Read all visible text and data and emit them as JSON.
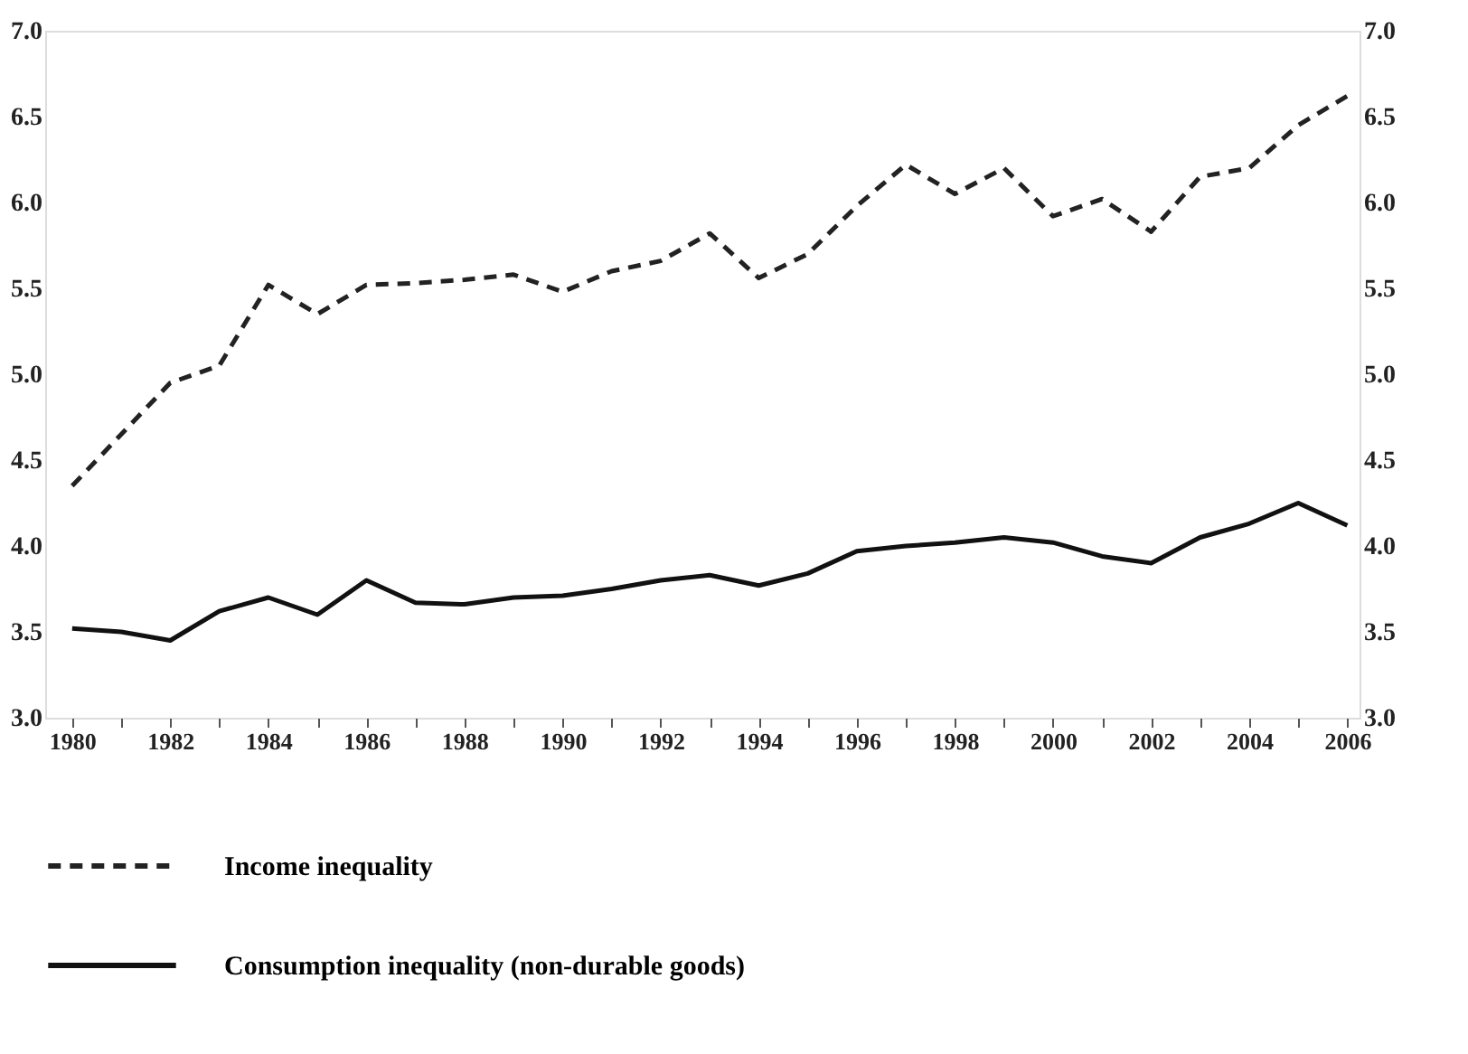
{
  "chart_data": {
    "type": "line",
    "x": [
      1980,
      1981,
      1982,
      1983,
      1984,
      1985,
      1986,
      1987,
      1988,
      1989,
      1990,
      1991,
      1992,
      1993,
      1994,
      1995,
      1996,
      1997,
      1998,
      1999,
      2000,
      2001,
      2002,
      2003,
      2004,
      2005,
      2006
    ],
    "series": [
      {
        "name": "Income inequality",
        "color": "#222222",
        "line_style": "dashed",
        "values": [
          4.35,
          4.65,
          4.95,
          5.05,
          5.52,
          5.35,
          5.52,
          5.53,
          5.55,
          5.58,
          5.48,
          5.6,
          5.66,
          5.82,
          5.56,
          5.7,
          5.98,
          6.22,
          6.05,
          6.2,
          5.92,
          6.02,
          5.83,
          6.15,
          6.2,
          6.45,
          6.62
        ]
      },
      {
        "name": "Consumption inequality (non-durable goods)",
        "color": "#111111",
        "line_style": "solid",
        "values": [
          3.52,
          3.5,
          3.45,
          3.62,
          3.7,
          3.6,
          3.8,
          3.67,
          3.66,
          3.7,
          3.71,
          3.75,
          3.8,
          3.83,
          3.77,
          3.84,
          3.97,
          4.0,
          4.02,
          4.05,
          4.02,
          3.94,
          3.9,
          4.05,
          4.13,
          4.25,
          4.12
        ]
      }
    ],
    "xlim": [
      1979.45,
      2006.25
    ],
    "xticks": [
      1980,
      {
        "value": 1981,
        "label": null
      },
      1982,
      {
        "value": 1983,
        "label": null
      },
      1984,
      {
        "value": 1985,
        "label": null
      },
      1986,
      {
        "value": 1987,
        "label": null
      },
      1988,
      {
        "value": 1989,
        "label": null
      },
      1990,
      {
        "value": 1991,
        "label": null
      },
      1992,
      {
        "value": 1993,
        "label": null
      },
      1994,
      {
        "value": 1995,
        "label": null
      },
      1996,
      {
        "value": 1997,
        "label": null
      },
      1998,
      {
        "value": 1999,
        "label": null
      },
      2000,
      {
        "value": 2001,
        "label": null
      },
      2002,
      {
        "value": 2003,
        "label": null
      },
      2004,
      {
        "value": 2005,
        "label": null
      },
      2006
    ],
    "ylim": [
      3.0,
      7.0
    ],
    "yticks": [
      {
        "value": 3.0,
        "label": "3.0"
      },
      {
        "value": 3.5,
        "label": "3.5"
      },
      {
        "value": 4.0,
        "label": "4.0"
      },
      {
        "value": 4.5,
        "label": "4.5"
      },
      {
        "value": 5.0,
        "label": "5.0"
      },
      {
        "value": 5.5,
        "label": "5.5"
      },
      {
        "value": 6.0,
        "label": "6.0"
      },
      {
        "value": 6.5,
        "label": "6.5"
      },
      {
        "value": 7.0,
        "label": "7.0"
      }
    ],
    "y2lim": [
      3.0,
      7.0
    ],
    "y2ticks": [
      {
        "value": 3.0,
        "label": "3.0"
      },
      {
        "value": 3.5,
        "label": "3.5"
      },
      {
        "value": 4.0,
        "label": "4.0"
      },
      {
        "value": 4.5,
        "label": "4.5"
      },
      {
        "value": 5.0,
        "label": "5.0"
      },
      {
        "value": 5.5,
        "label": "5.5"
      },
      {
        "value": 6.0,
        "label": "6.0"
      },
      {
        "value": 6.5,
        "label": "6.5"
      },
      {
        "value": 7.0,
        "label": "7.0"
      }
    ],
    "grid": false,
    "legend": "bottom",
    "marker": "none"
  }
}
